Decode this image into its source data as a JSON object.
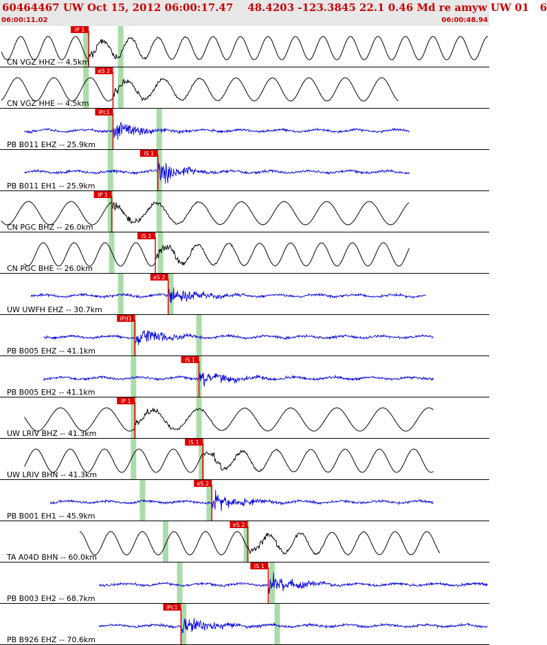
{
  "header": {
    "title": "60464467 UW Oct 15, 2012 06:00:17.47    48.4203 -123.3845 22.1 0.46 Md re amyw UW 01   6",
    "start_time": "06:00:11.02",
    "end_time": "06:00:48.94"
  },
  "chart_data": {
    "type": "line",
    "title": "60464467 UW Oct 15, 2012 06:00:17.47",
    "time_window": {
      "start": "06:00:11.02",
      "end": "06:00:48.94",
      "duration_s": 37.92
    },
    "colors": {
      "short_period": "#0000dd",
      "broadband": "#000000",
      "pick": "#dd0000",
      "theoretical": "#aadcaa",
      "header_text": "#cc0000"
    },
    "traces": [
      {
        "label": "CN VGZ HHZ -- 4.5km",
        "kind": "broadband",
        "data_start_s": 0.0,
        "data_end_s": 37.92,
        "pick_label": "iP 1",
        "pick_s": 6.8,
        "theo_p_s": 6.6,
        "theo_s_s": 9.3
      },
      {
        "label": "CN VGZ HHE -- 4.5km",
        "kind": "broadband",
        "data_start_s": 0.0,
        "data_end_s": 31.0,
        "pick_label": "eS 2",
        "pick_s": 8.7,
        "theo_p_s": 6.6,
        "theo_s_s": 9.3
      },
      {
        "label": "PB B011 EHZ -- 25.9km",
        "kind": "short_period",
        "data_start_s": 1.8,
        "data_end_s": 31.8,
        "pick_label": "iPc1",
        "pick_s": 8.7,
        "theo_p_s": 8.5,
        "theo_s_s": 12.3
      },
      {
        "label": "PB B011 EH1 -- 25.9km",
        "kind": "short_period",
        "data_start_s": 1.8,
        "data_end_s": 31.8,
        "pick_label": "iS 1",
        "pick_s": 12.2,
        "theo_p_s": 8.5,
        "theo_s_s": 12.3
      },
      {
        "label": "CN PGC BHZ -- 26.0km",
        "kind": "broadband",
        "data_start_s": 0.0,
        "data_end_s": 31.8,
        "pick_label": "iP 1",
        "pick_s": 8.6,
        "theo_p_s": 8.5,
        "theo_s_s": 12.3
      },
      {
        "label": "CN PGC BHE -- 26.0km",
        "kind": "broadband",
        "data_start_s": 1.8,
        "data_end_s": 31.8,
        "pick_label": "iS 1",
        "pick_s": 12.0,
        "theo_p_s": 8.6,
        "theo_s_s": 12.4
      },
      {
        "label": "UW UWFH EHZ -- 30.7km",
        "kind": "short_period",
        "data_start_s": 2.3,
        "data_end_s": 33.1,
        "pick_label": "eS 2",
        "pick_s": 13.0,
        "theo_p_s": 9.3,
        "theo_s_s": 13.2
      },
      {
        "label": "PB B005 EHZ -- 41.1km",
        "kind": "short_period",
        "data_start_s": 3.3,
        "data_end_s": 33.7,
        "pick_label": "iPd1",
        "pick_s": 10.4,
        "theo_p_s": 10.3,
        "theo_s_s": 15.4
      },
      {
        "label": "PB B005 EH2 -- 41.1km",
        "kind": "short_period",
        "data_start_s": 3.3,
        "data_end_s": 33.7,
        "pick_label": "iS 1",
        "pick_s": 15.4,
        "theo_p_s": 10.3,
        "theo_s_s": 15.4
      },
      {
        "label": "UW LRIV BHZ -- 41.3km",
        "kind": "broadband",
        "data_start_s": 1.8,
        "data_end_s": 33.7,
        "pick_label": "iP 1",
        "pick_s": 10.4,
        "theo_p_s": 10.3,
        "theo_s_s": 15.4
      },
      {
        "label": "UW LRIV BHN -- 41.3km",
        "kind": "broadband",
        "data_start_s": 1.8,
        "data_end_s": 33.7,
        "pick_label": "iS 1",
        "pick_s": 15.7,
        "theo_p_s": 10.3,
        "theo_s_s": 15.6
      },
      {
        "label": "PB B001 EH1 -- 45.9km",
        "kind": "short_period",
        "data_start_s": 3.8,
        "data_end_s": 33.7,
        "pick_label": "eS 2",
        "pick_s": 16.4,
        "theo_p_s": 11.0,
        "theo_s_s": 16.2
      },
      {
        "label": "TA A04D BHN -- 60.0km",
        "kind": "broadband",
        "data_start_s": 6.1,
        "data_end_s": 34.2,
        "pick_label": "eS 2",
        "pick_s": 19.2,
        "theo_p_s": 12.8,
        "theo_s_s": 19.1
      },
      {
        "label": "PB B003 EH2 -- 68.7km",
        "kind": "short_period",
        "data_start_s": 7.6,
        "data_end_s": 37.9,
        "pick_label": "iS 1",
        "pick_s": 20.8,
        "theo_p_s": 13.9,
        "theo_s_s": 21.1
      },
      {
        "label": "PB B926 EHZ -- 70.6km",
        "kind": "short_period",
        "data_start_s": 7.6,
        "data_end_s": 37.9,
        "pick_label": "iPc1",
        "pick_s": 14.0,
        "theo_p_s": 14.2,
        "theo_s_s": 21.5
      }
    ]
  }
}
